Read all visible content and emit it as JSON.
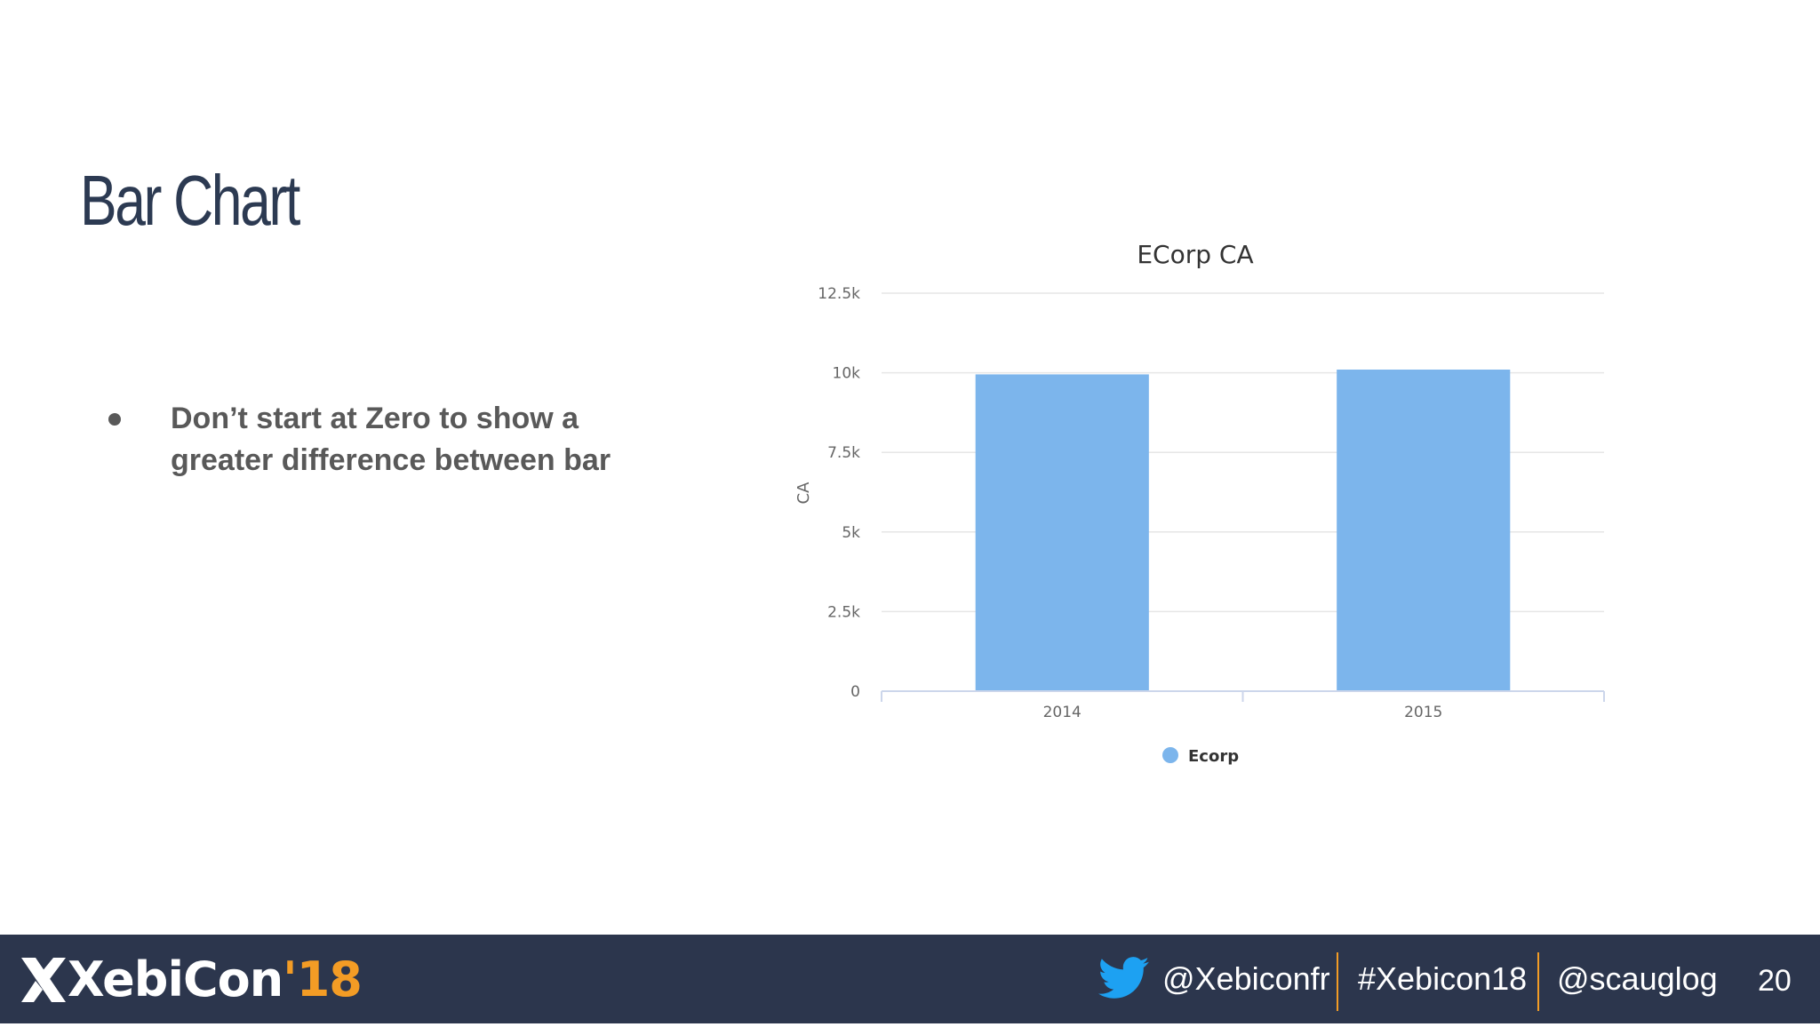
{
  "slide": {
    "title": "Bar Chart",
    "bullets": [
      "Don’t start at Zero to show a greater difference between bar"
    ]
  },
  "chart_data": {
    "type": "bar",
    "title": "ECorp CA",
    "xlabel": "",
    "ylabel": "CA",
    "categories": [
      "2014",
      "2015"
    ],
    "series": [
      {
        "name": "Ecorp",
        "values": [
          9950,
          10100
        ],
        "color": "#7cb5ec"
      }
    ],
    "yticks": [
      "0",
      "2.5k",
      "5k",
      "7.5k",
      "10k",
      "12.5k"
    ],
    "ylim": [
      0,
      12500
    ],
    "grid": true,
    "legend": "bottom-center"
  },
  "footer": {
    "logo_main": "XebiCon",
    "logo_year": "'18",
    "twitter_handle": "@Xebiconfr",
    "hashtag": "#Xebicon18",
    "speaker_handle": "@scauglog",
    "page_number": "20",
    "accent_color": "#f39c25",
    "twitter_color": "#1da1f2"
  }
}
